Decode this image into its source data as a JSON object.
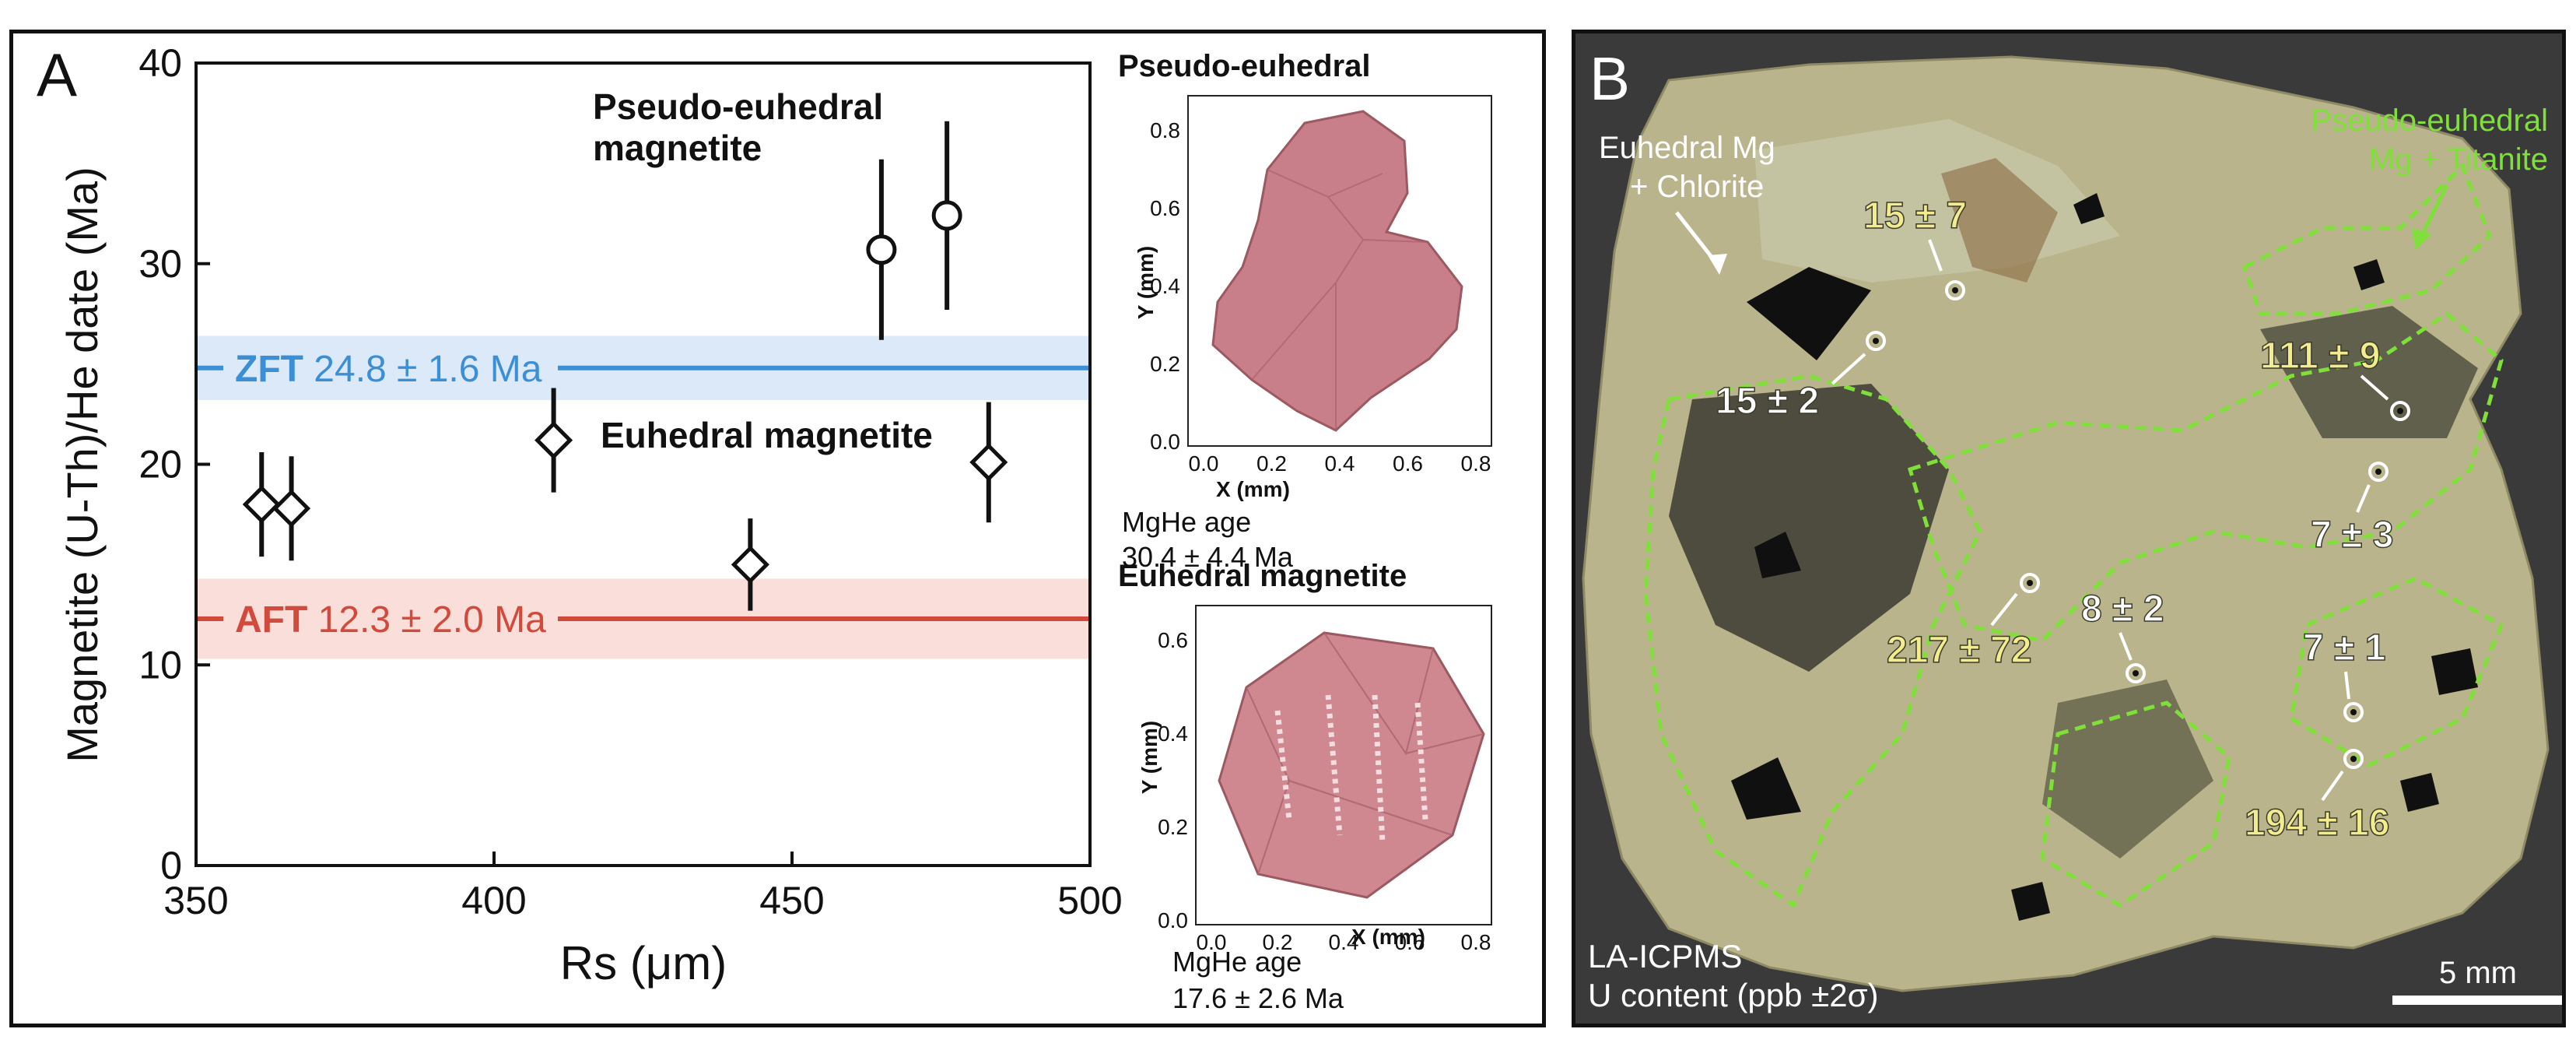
{
  "panel_a": {
    "letter": "A",
    "chart_data": {
      "type": "scatter",
      "xlabel": "Rs (μm)",
      "ylabel": "Magnetite (U-Th)/He date (Ma)",
      "xlim": [
        350,
        500
      ],
      "ylim": [
        0,
        40
      ],
      "xticks": [
        350,
        400,
        450,
        500
      ],
      "yticks": [
        0,
        10,
        20,
        30,
        40
      ],
      "grid": false,
      "series": [
        {
          "name": "Pseudo-euhedral magnetite",
          "marker": "circle",
          "points": [
            {
              "x": 465,
              "y": 30.7,
              "err": 4.5
            },
            {
              "x": 476,
              "y": 32.4,
              "err": 4.7
            }
          ]
        },
        {
          "name": "Euhedral magnetite",
          "marker": "diamond",
          "points": [
            {
              "x": 361,
              "y": 18.0,
              "err": 2.6
            },
            {
              "x": 366,
              "y": 17.8,
              "err": 2.6
            },
            {
              "x": 410,
              "y": 21.2,
              "err": 2.6
            },
            {
              "x": 443,
              "y": 15.0,
              "err": 2.3
            },
            {
              "x": 483,
              "y": 20.1,
              "err": 3.0
            }
          ]
        }
      ],
      "reference_lines": [
        {
          "label_strong": "ZFT",
          "label_rest": "24.8 ± 1.6 Ma",
          "value": 24.8,
          "band": [
            23.2,
            26.4
          ],
          "color": "#3a8fd6",
          "band_color": "#dce9f8"
        },
        {
          "label_strong": "AFT",
          "label_rest": "12.3 ± 2.0 Ma",
          "value": 12.3,
          "band": [
            10.3,
            14.3
          ],
          "color": "#d24a3c",
          "band_color": "#f9ded9"
        }
      ],
      "annotations": [
        {
          "text_lines": [
            "Pseudo-euhedral",
            "magnetite"
          ]
        },
        {
          "text_lines": [
            "Euhedral magnetite"
          ]
        }
      ]
    },
    "insets": [
      {
        "title": "Pseudo-euhedral",
        "x_label": "X (mm)",
        "y_label": "Y (mm)",
        "x_ticks": [
          "0.0",
          "0.2",
          "0.4",
          "0.6",
          "0.8"
        ],
        "y_ticks": [
          "0.0",
          "0.2",
          "0.4",
          "0.6",
          "0.8"
        ],
        "age_label": "MgHe age",
        "age_value": "30.4 ± 4.4 Ma"
      },
      {
        "title": "Euhedral magnetite",
        "x_label": "X (mm)",
        "y_label": "Y (mm)",
        "x_ticks": [
          "0.0",
          "0.2",
          "0.4",
          "0.6",
          "0.8"
        ],
        "y_ticks": [
          "0.0",
          "0.2",
          "0.4",
          "0.6"
        ],
        "age_label": "MgHe age",
        "age_value": "17.6 ± 2.6 Ma"
      }
    ]
  },
  "panel_b": {
    "letter": "B",
    "label_euhedral": [
      "Euhedral Mg",
      "+ Chlorite"
    ],
    "label_pseudo": [
      "Pseudo-euhedral",
      "Mg + Titanite"
    ],
    "spots": [
      {
        "label": "15 ± 7",
        "color": "yellow"
      },
      {
        "label": "15 ± 2",
        "color": "white"
      },
      {
        "label": "111 ± 9",
        "color": "yellow"
      },
      {
        "label": "7 ± 3",
        "color": "white"
      },
      {
        "label": "217 ± 72",
        "color": "yellow"
      },
      {
        "label": "8 ± 2",
        "color": "white"
      },
      {
        "label": "7 ± 1",
        "color": "white"
      },
      {
        "label": "194 ± 16",
        "color": "yellow"
      }
    ],
    "footer_line1": "LA-ICPMS",
    "footer_line2": "U content (ppb ±2σ)",
    "scale_label": "5 mm",
    "colors": {
      "green_dashed": "#7fe03a",
      "yellow_label": "#f2ec8e",
      "white_label": "#ffffff"
    }
  }
}
